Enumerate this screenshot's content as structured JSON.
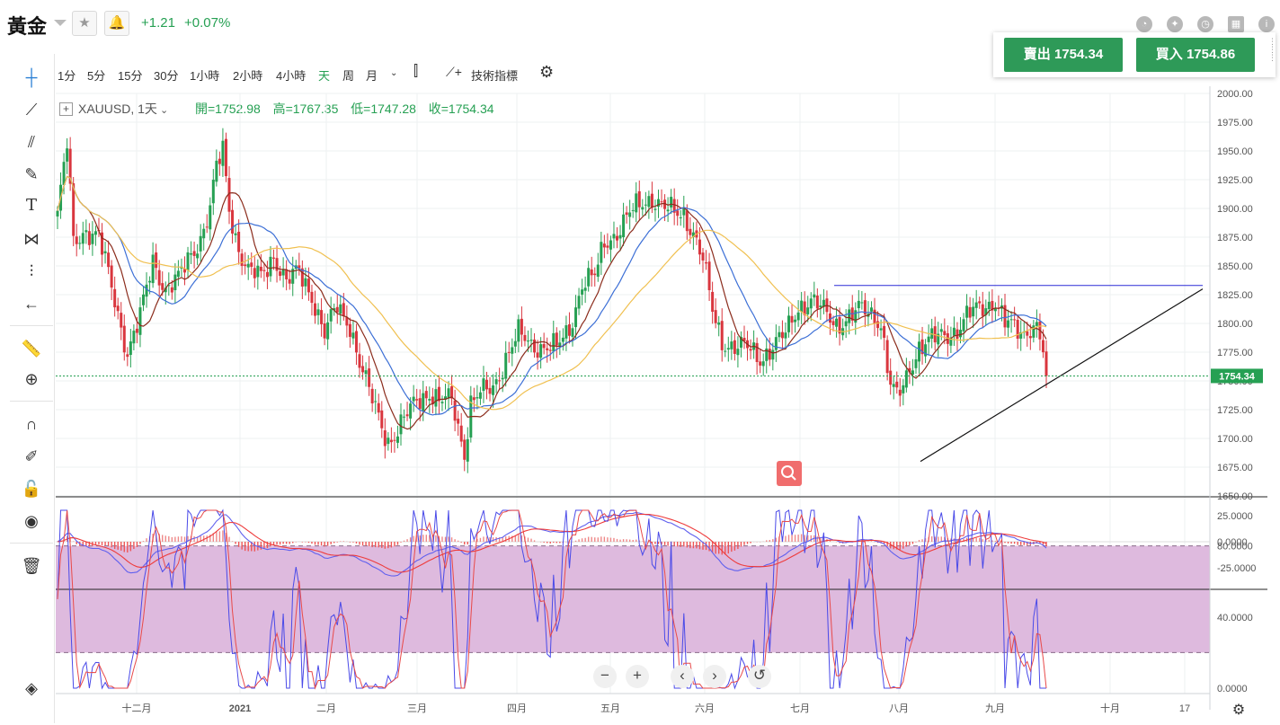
{
  "header": {
    "symbol": "黃金",
    "change": "+1.21",
    "change_pct": "+0.07%",
    "icons": [
      "pie-chart-icon",
      "compass-icon",
      "clock-icon",
      "calendar-icon",
      "info-icon"
    ]
  },
  "trade": {
    "sell_label": "賣出 1754.34",
    "buy_label": "買入 1754.86"
  },
  "toolbar": {
    "timeframes": [
      "1分",
      "5分",
      "15分",
      "30分",
      "1小時",
      "2小時",
      "4小時",
      "天",
      "周",
      "月"
    ],
    "active_timeframe": "天",
    "indicators_label": "技術指標"
  },
  "legend": {
    "ticker": "XAUUSD",
    "interval": "1天",
    "open": "開=1752.98",
    "high": "高=1767.35",
    "low": "低=1747.28",
    "close": "收=1754.34"
  },
  "colors": {
    "up": "#26a053",
    "down": "#d9363e",
    "ma_fast": "#8b2c1c",
    "ma_mid": "#3c6fd6",
    "ma_slow": "#f0c050",
    "trend": "#2b2bd6",
    "macd_line": "#6060ee",
    "macd_signal": "#ee3b3b",
    "stoch_band": "#dcb6dc"
  },
  "chart_data": [
    {
      "type": "candlestick",
      "title": "XAUUSD",
      "ylim": [
        1650,
        2000
      ],
      "y_ticks": [
        "2000.00",
        "1975.00",
        "1950.00",
        "1925.00",
        "1900.00",
        "1875.00",
        "1850.00",
        "1825.00",
        "1800.00",
        "1775.00",
        "1750.00",
        "1725.00",
        "1700.00",
        "1675.00",
        "1650.00"
      ],
      "x_labels": [
        "十二月",
        "2021",
        "二月",
        "三月",
        "四月",
        "五月",
        "六月",
        "七月",
        "八月",
        "九月",
        "十月",
        "17"
      ],
      "last_price": "1754.34",
      "anchors": [
        [
          0,
          1895
        ],
        [
          3,
          1955
        ],
        [
          5,
          1870
        ],
        [
          9,
          1882
        ],
        [
          13,
          1875
        ],
        [
          18,
          1820
        ],
        [
          22,
          1775
        ],
        [
          26,
          1805
        ],
        [
          30,
          1855
        ],
        [
          34,
          1830
        ],
        [
          38,
          1838
        ],
        [
          42,
          1860
        ],
        [
          45,
          1875
        ],
        [
          48,
          1900
        ],
        [
          50,
          1935
        ],
        [
          52,
          1950
        ],
        [
          54,
          1900
        ],
        [
          57,
          1865
        ],
        [
          60,
          1845
        ],
        [
          64,
          1840
        ],
        [
          68,
          1860
        ],
        [
          72,
          1835
        ],
        [
          76,
          1845
        ],
        [
          80,
          1825
        ],
        [
          84,
          1790
        ],
        [
          88,
          1815
        ],
        [
          92,
          1800
        ],
        [
          95,
          1765
        ],
        [
          98,
          1740
        ],
        [
          101,
          1720
        ],
        [
          104,
          1698
        ],
        [
          107,
          1705
        ],
        [
          110,
          1720
        ],
        [
          113,
          1735
        ],
        [
          117,
          1740
        ],
        [
          120,
          1730
        ],
        [
          124,
          1735
        ],
        [
          128,
          1688
        ],
        [
          130,
          1730
        ],
        [
          133,
          1738
        ],
        [
          137,
          1745
        ],
        [
          141,
          1770
        ],
        [
          145,
          1790
        ],
        [
          149,
          1782
        ],
        [
          153,
          1780
        ],
        [
          157,
          1778
        ],
        [
          161,
          1795
        ],
        [
          165,
          1835
        ],
        [
          169,
          1840
        ],
        [
          172,
          1870
        ],
        [
          176,
          1880
        ],
        [
          180,
          1895
        ],
        [
          184,
          1905
        ],
        [
          187,
          1910
        ],
        [
          191,
          1900
        ],
        [
          194,
          1895
        ],
        [
          197,
          1895
        ],
        [
          200,
          1880
        ],
        [
          203,
          1855
        ],
        [
          206,
          1810
        ],
        [
          209,
          1785
        ],
        [
          213,
          1780
        ],
        [
          217,
          1778
        ],
        [
          221,
          1770
        ],
        [
          225,
          1780
        ],
        [
          229,
          1790
        ],
        [
          233,
          1815
        ],
        [
          237,
          1820
        ],
        [
          241,
          1810
        ],
        [
          245,
          1800
        ],
        [
          249,
          1805
        ],
        [
          253,
          1812
        ],
        [
          257,
          1808
        ],
        [
          259,
          1800
        ],
        [
          262,
          1745
        ],
        [
          264,
          1735
        ],
        [
          266,
          1745
        ],
        [
          268,
          1762
        ],
        [
          271,
          1780
        ],
        [
          275,
          1785
        ],
        [
          279,
          1790
        ],
        [
          283,
          1795
        ],
        [
          287,
          1808
        ],
        [
          291,
          1815
        ],
        [
          295,
          1820
        ],
        [
          298,
          1800
        ],
        [
          301,
          1795
        ],
        [
          304,
          1792
        ],
        [
          307,
          1800
        ],
        [
          309,
          1790
        ],
        [
          311,
          1755
        ]
      ],
      "trend_line_resistance": 1833,
      "trend_line_support": [
        [
          1680,
          "八月"
        ],
        [
          1830,
          "十月"
        ]
      ]
    },
    {
      "type": "line",
      "title": "MACD",
      "ylim": [
        -35,
        35
      ],
      "y_ticks": [
        "25.0000",
        "0.0000",
        "-25.0000"
      ]
    },
    {
      "type": "line",
      "title": "Stochastic",
      "ylim": [
        -5,
        100
      ],
      "y_ticks": [
        "80.0000",
        "40.0000",
        "0.0000"
      ],
      "band": [
        20,
        80
      ]
    }
  ]
}
